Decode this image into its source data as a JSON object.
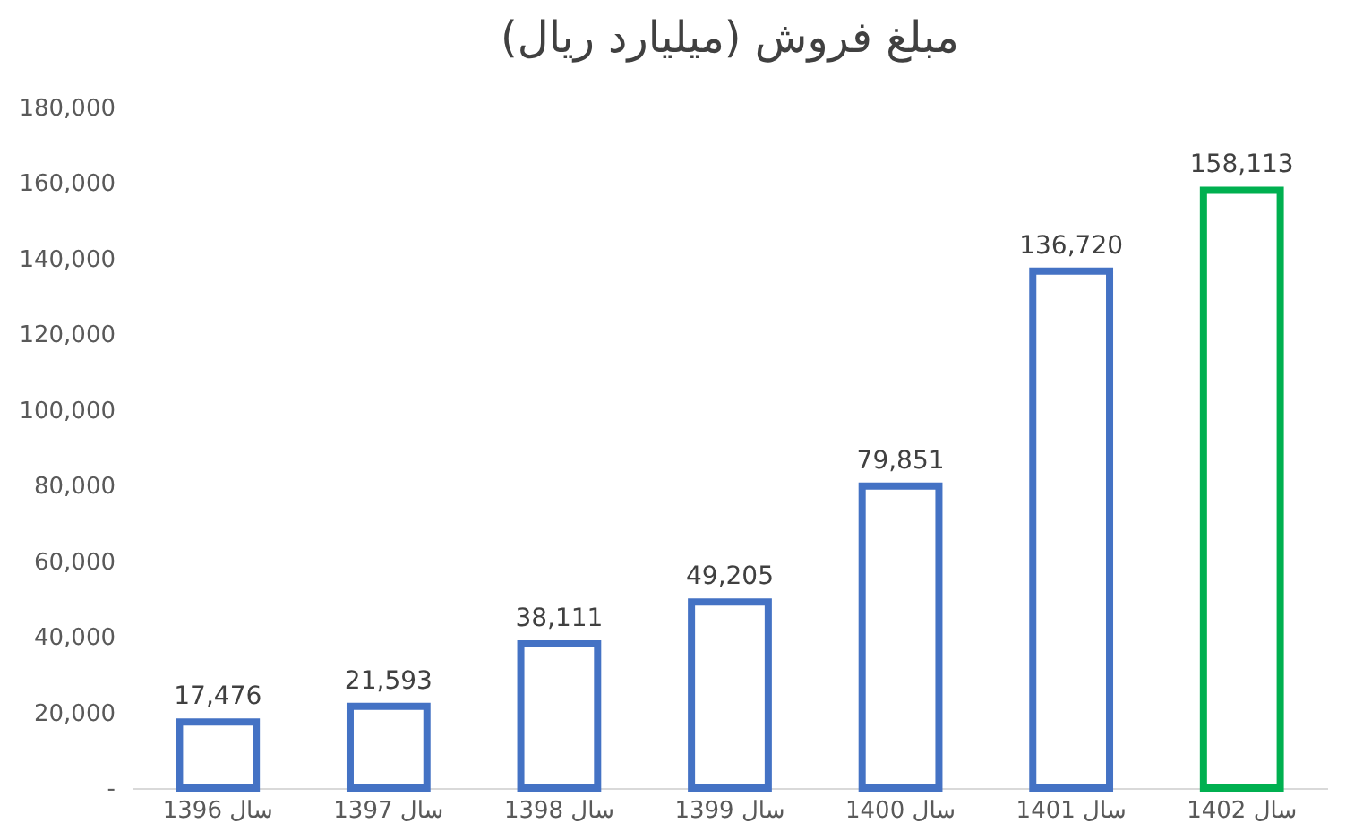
{
  "chart_data": {
    "type": "bar",
    "title": "مبلغ فروش (میلیارد ریال)",
    "categories": [
      "سال 1396",
      "سال 1397",
      "سال 1398",
      "سال 1399",
      "سال 1400",
      "سال 1401",
      "سال 1402"
    ],
    "values": [
      17476,
      21593,
      38111,
      49205,
      79851,
      136720,
      158113
    ],
    "value_labels": [
      "17,476",
      "21,593",
      "38,111",
      "49,205",
      "79,851",
      "136,720",
      "158,113"
    ],
    "colors": [
      "#4472c4",
      "#4472c4",
      "#4472c4",
      "#4472c4",
      "#4472c4",
      "#4472c4",
      "#00b050"
    ],
    "ylim": [
      0,
      180000
    ],
    "yticks": [
      {
        "value": 0,
        "label": "-"
      },
      {
        "value": 20000,
        "label": "20,000"
      },
      {
        "value": 40000,
        "label": "40,000"
      },
      {
        "value": 60000,
        "label": "60,000"
      },
      {
        "value": 80000,
        "label": "80,000"
      },
      {
        "value": 100000,
        "label": "100,000"
      },
      {
        "value": 120000,
        "label": "120,000"
      },
      {
        "value": 140000,
        "label": "140,000"
      },
      {
        "value": 160000,
        "label": "160,000"
      },
      {
        "value": 180000,
        "label": "180,000"
      }
    ],
    "grid": false
  }
}
